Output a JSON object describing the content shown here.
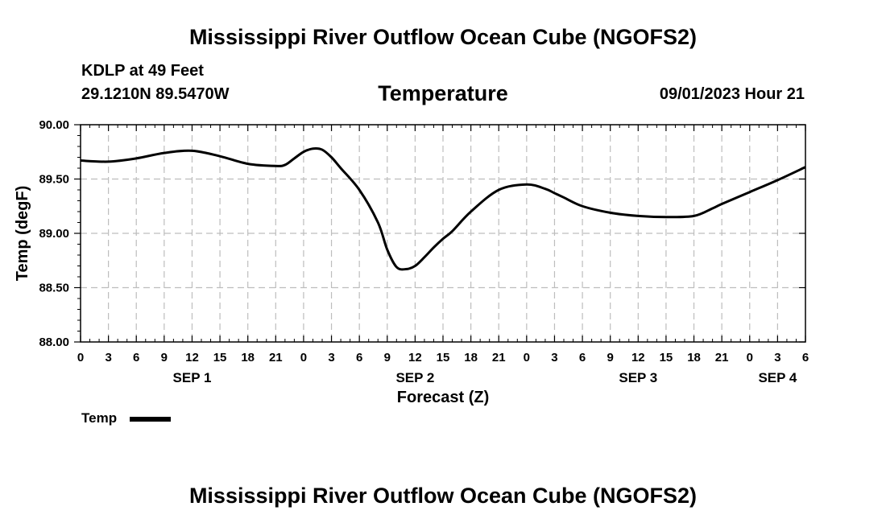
{
  "page": {
    "title_top": "Mississippi River Outflow Ocean Cube (NGOFS2)",
    "title_bottom": "Mississippi River Outflow Ocean Cube (NGOFS2)"
  },
  "station": {
    "name": "KDLP at 49 Feet",
    "coords": "29.1210N  89.5470W"
  },
  "run_time": "09/01/2023 Hour 21",
  "chart_data": {
    "type": "line",
    "title": "Temperature",
    "xlabel": "Forecast (Z)",
    "ylabel": "Temp (degF)",
    "ylim": [
      88.0,
      90.0
    ],
    "yticks": [
      88.0,
      88.5,
      89.0,
      89.5,
      90.0
    ],
    "ytick_labels": [
      "88.00",
      "88.50",
      "89.00",
      "89.50",
      "90.00"
    ],
    "xlim_hours": [
      0,
      78
    ],
    "xtick_hours": [
      0,
      3,
      6,
      9,
      12,
      15,
      18,
      21,
      24,
      27,
      30,
      33,
      36,
      39,
      42,
      45,
      48,
      51,
      54,
      57,
      60,
      63,
      66,
      69,
      72,
      75,
      78
    ],
    "xtick_labels": [
      "0",
      "3",
      "6",
      "9",
      "12",
      "15",
      "18",
      "21",
      "0",
      "3",
      "6",
      "9",
      "12",
      "15",
      "18",
      "21",
      "0",
      "3",
      "6",
      "9",
      "12",
      "15",
      "18",
      "21",
      "0",
      "3",
      "6"
    ],
    "day_labels": [
      {
        "hour": 12,
        "label": "SEP 1"
      },
      {
        "hour": 36,
        "label": "SEP 2"
      },
      {
        "hour": 60,
        "label": "SEP 3"
      },
      {
        "hour": 75,
        "label": "SEP 4"
      }
    ],
    "grid": true,
    "legend": "bottom-left",
    "series": [
      {
        "name": "Temp",
        "color": "#000000",
        "x": [
          0,
          3,
          6,
          9,
          12,
          15,
          18,
          21,
          22,
          23,
          24,
          25,
          26,
          27,
          28,
          30,
          32,
          33,
          34,
          35,
          36,
          37,
          38,
          39,
          40,
          42,
          45,
          48,
          50,
          51,
          52,
          54,
          57,
          60,
          63,
          66,
          68,
          69,
          72,
          75,
          78
        ],
        "values": [
          89.67,
          89.66,
          89.69,
          89.74,
          89.76,
          89.71,
          89.64,
          89.62,
          89.63,
          89.69,
          89.75,
          89.78,
          89.77,
          89.7,
          89.6,
          89.4,
          89.1,
          88.85,
          88.69,
          88.67,
          88.7,
          88.78,
          88.87,
          88.95,
          89.02,
          89.2,
          89.4,
          89.45,
          89.41,
          89.37,
          89.33,
          89.25,
          89.19,
          89.16,
          89.15,
          89.16,
          89.23,
          89.27,
          89.38,
          89.49,
          89.61
        ]
      }
    ]
  }
}
